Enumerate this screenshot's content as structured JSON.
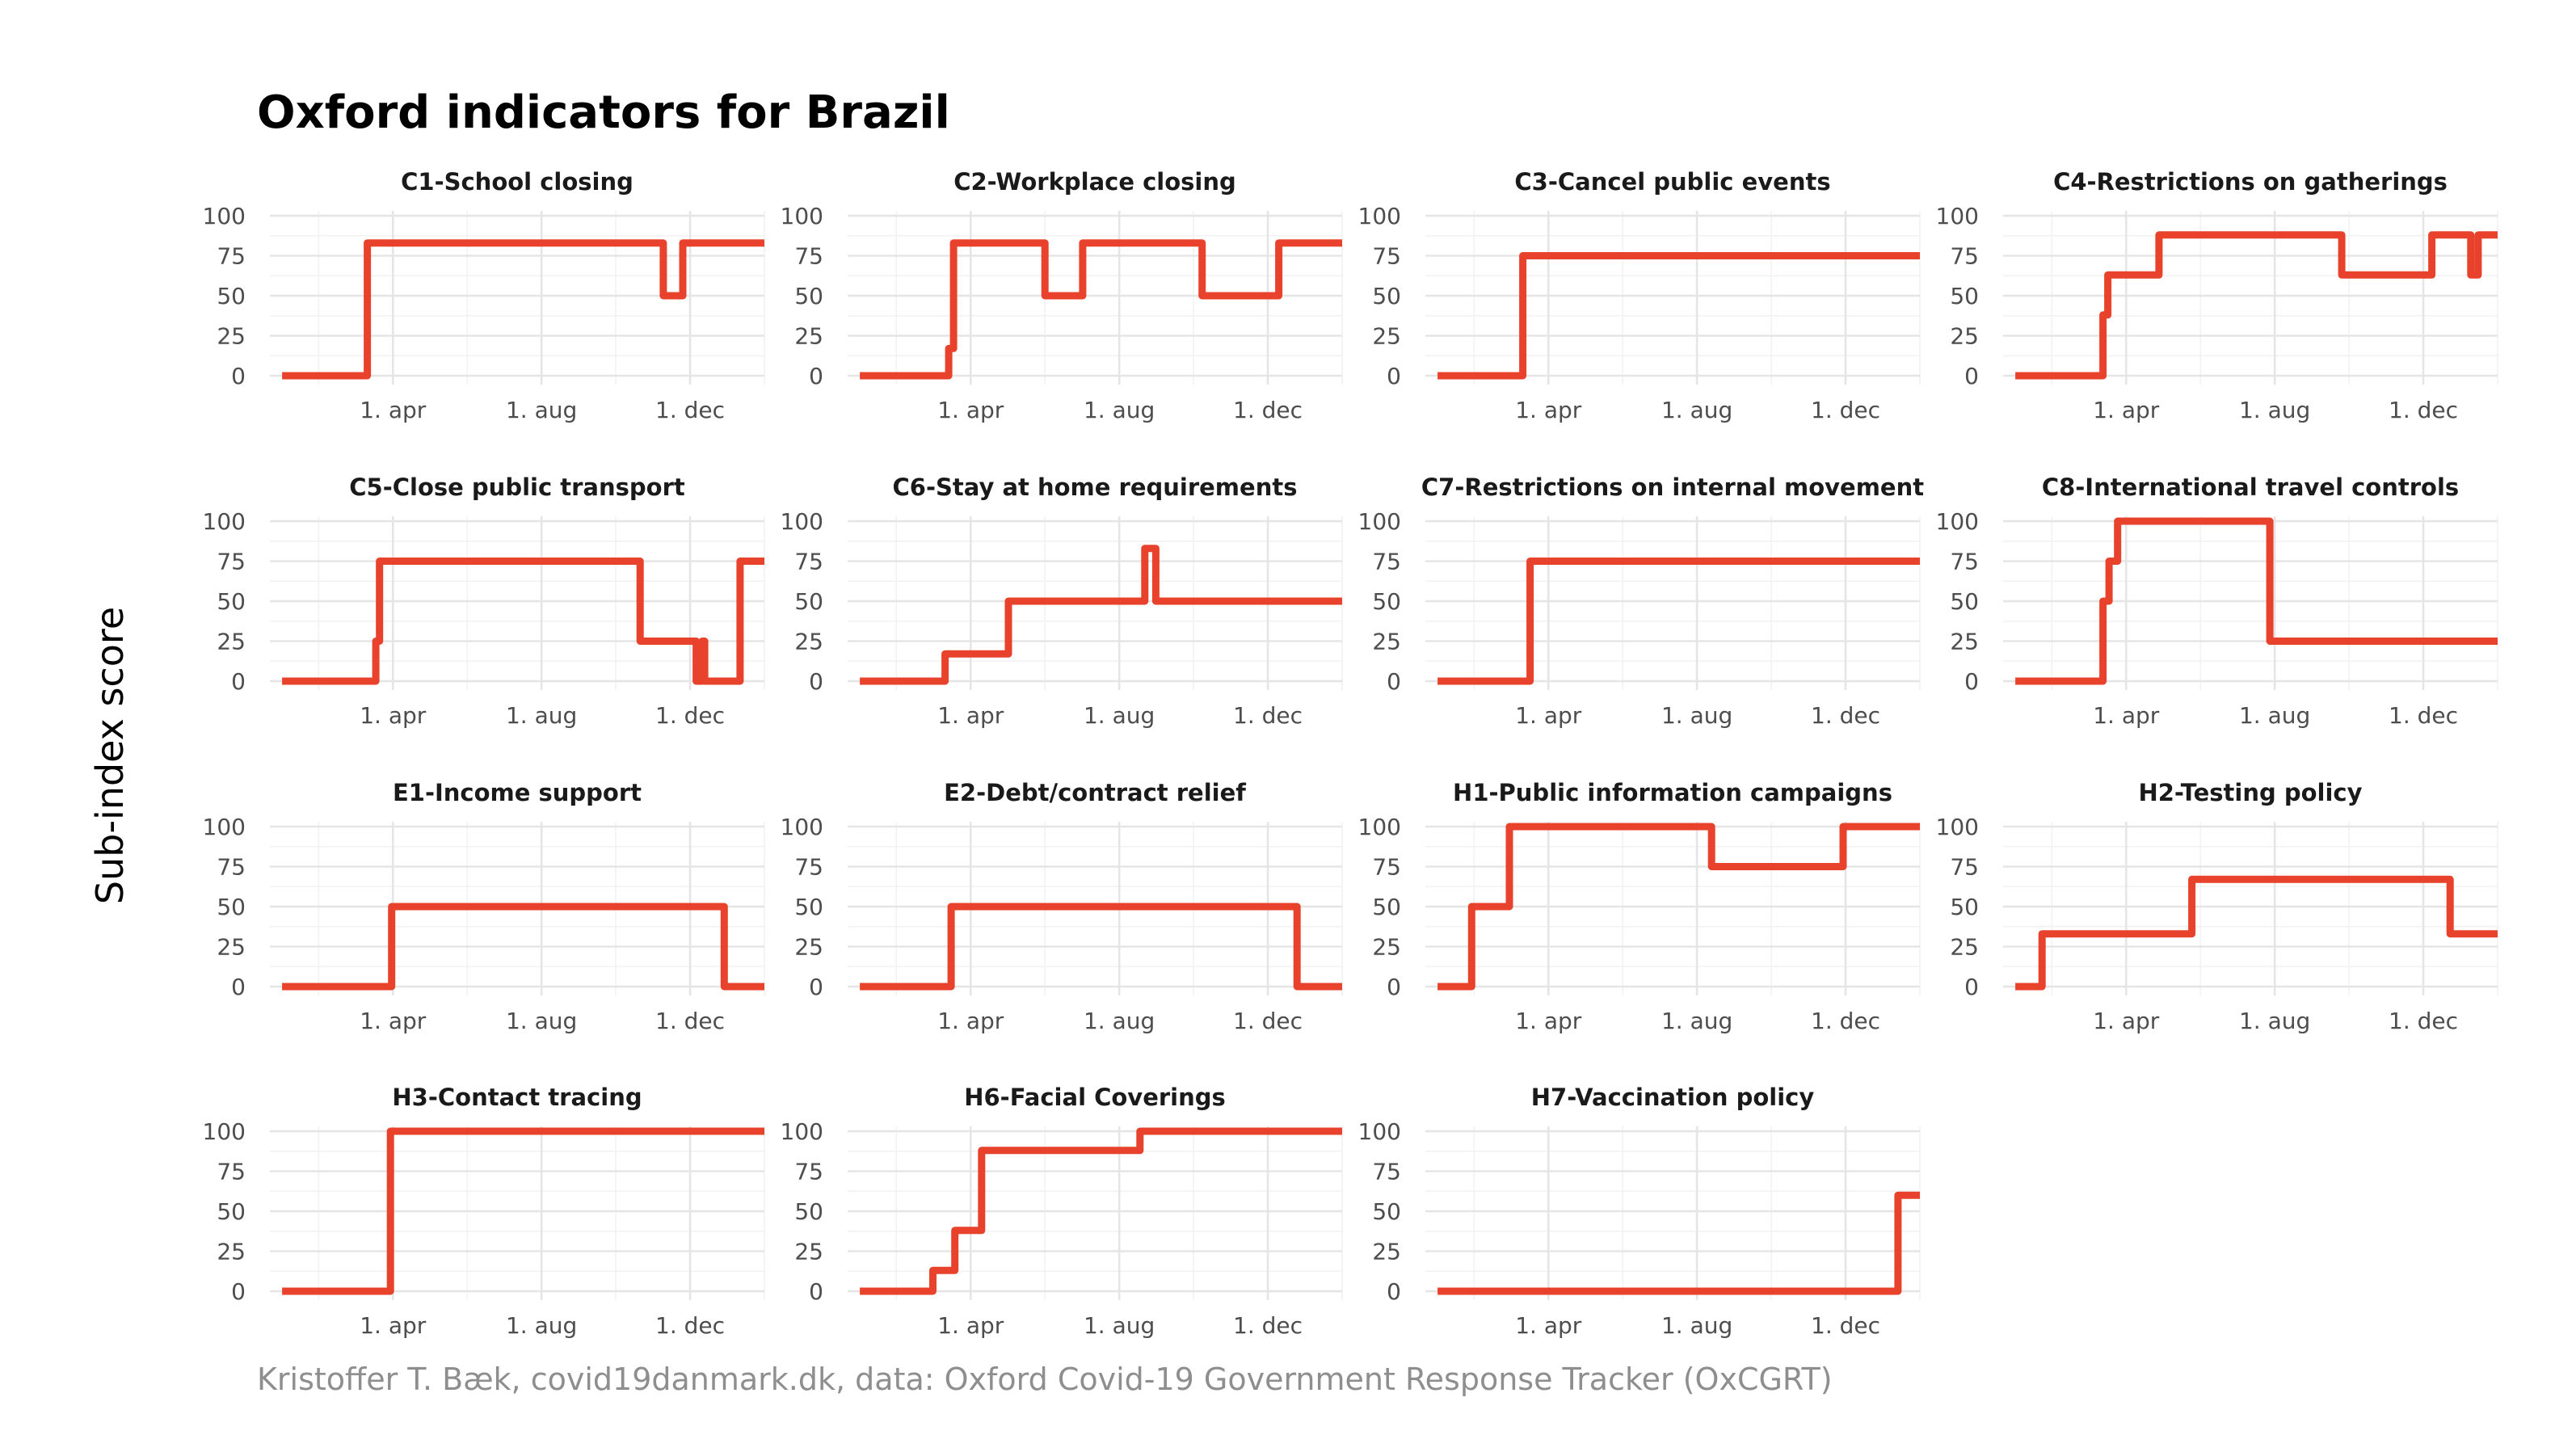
{
  "colors": {
    "series": "#e8412c",
    "grid": "#e5e5e5",
    "caption": "#8e8e8e"
  },
  "chart_data": {
    "type": "line",
    "subtype": "step facets",
    "title": "Oxford indicators for Brazil",
    "ylabel": "Sub-index score",
    "xlabel": "",
    "caption": "Kristoffer T. Bæk, covid19danmark.dk, data: Oxford Covid-19 Government Response Tracker (OxCGRT)",
    "x_unit": "days since 2020-01-01",
    "xlim": [
      -10,
      396
    ],
    "ylim": [
      0,
      100
    ],
    "y_ticks": [
      0,
      25,
      50,
      75,
      100
    ],
    "x_ticks": [
      {
        "day": 91,
        "label": "1. apr"
      },
      {
        "day": 213,
        "label": "1. aug"
      },
      {
        "day": 335,
        "label": "1. dec"
      }
    ],
    "grid": true,
    "legend": "none",
    "panels": [
      {
        "name": "C1-School closing",
        "x": [
          0,
          70,
          70,
          313,
          313,
          329,
          329,
          396
        ],
        "y": [
          0,
          0,
          83,
          83,
          50,
          50,
          83,
          83
        ]
      },
      {
        "name": "C2-Workplace closing",
        "x": [
          0,
          73,
          73,
          77,
          77,
          152,
          152,
          183,
          183,
          281,
          281,
          344,
          344,
          396
        ],
        "y": [
          0,
          0,
          17,
          17,
          83,
          83,
          50,
          50,
          83,
          83,
          50,
          50,
          83,
          83
        ]
      },
      {
        "name": "C3-Cancel public events",
        "x": [
          0,
          70,
          70,
          396
        ],
        "y": [
          0,
          0,
          75,
          75
        ]
      },
      {
        "name": "C4-Restrictions on gatherings",
        "x": [
          0,
          72,
          72,
          76,
          76,
          80,
          80,
          118,
          118,
          268,
          268,
          342,
          342,
          374,
          374,
          380,
          380,
          396
        ],
        "y": [
          0,
          0,
          38,
          38,
          63,
          63,
          63,
          63,
          88,
          88,
          63,
          63,
          88,
          88,
          63,
          63,
          88,
          88
        ]
      },
      {
        "name": "C5-Close public transport",
        "x": [
          0,
          77,
          77,
          80,
          80,
          294,
          294,
          340,
          340,
          345,
          345,
          347,
          347,
          350,
          350,
          376,
          376,
          396
        ],
        "y": [
          0,
          0,
          25,
          25,
          75,
          75,
          25,
          25,
          0,
          0,
          25,
          25,
          0,
          0,
          0,
          0,
          75,
          75
        ]
      },
      {
        "name": "C6-Stay at home requirements",
        "x": [
          0,
          70,
          70,
          122,
          122,
          234,
          234,
          243,
          243,
          396
        ],
        "y": [
          0,
          0,
          17,
          17,
          50,
          50,
          83,
          83,
          50,
          50
        ]
      },
      {
        "name": "C7-Restrictions on internal movement",
        "x": [
          0,
          76,
          76,
          396
        ],
        "y": [
          0,
          0,
          75,
          75
        ]
      },
      {
        "name": "C8-International travel controls",
        "x": [
          0,
          72,
          72,
          77,
          77,
          81,
          81,
          84,
          84,
          209,
          209,
          396
        ],
        "y": [
          0,
          0,
          50,
          50,
          75,
          75,
          75,
          75,
          100,
          100,
          25,
          25
        ]
      },
      {
        "name": "E1-Income support",
        "x": [
          0,
          90,
          90,
          363,
          363,
          396
        ],
        "y": [
          0,
          0,
          50,
          50,
          0,
          0
        ]
      },
      {
        "name": "E2-Debt/contract relief",
        "x": [
          0,
          75,
          75,
          359,
          359,
          396
        ],
        "y": [
          0,
          0,
          50,
          50,
          0,
          0
        ]
      },
      {
        "name": "H1-Public information campaigns",
        "x": [
          0,
          28,
          28,
          59,
          59,
          225,
          225,
          333,
          333,
          396
        ],
        "y": [
          0,
          0,
          50,
          50,
          100,
          100,
          75,
          75,
          100,
          100
        ]
      },
      {
        "name": "H2-Testing policy",
        "x": [
          0,
          22,
          22,
          145,
          145,
          357,
          357,
          396
        ],
        "y": [
          0,
          0,
          33,
          33,
          67,
          67,
          33,
          33
        ]
      },
      {
        "name": "H3-Contact tracing",
        "x": [
          0,
          89,
          89,
          396
        ],
        "y": [
          0,
          0,
          100,
          100
        ]
      },
      {
        "name": "H6-Facial Coverings",
        "x": [
          0,
          60,
          60,
          78,
          78,
          100,
          100,
          230,
          230,
          396
        ],
        "y": [
          0,
          0,
          13,
          13,
          38,
          38,
          88,
          88,
          100,
          100
        ]
      },
      {
        "name": "H7-Vaccination policy",
        "x": [
          0,
          378,
          378,
          396
        ],
        "y": [
          0,
          0,
          60,
          60
        ]
      }
    ]
  }
}
